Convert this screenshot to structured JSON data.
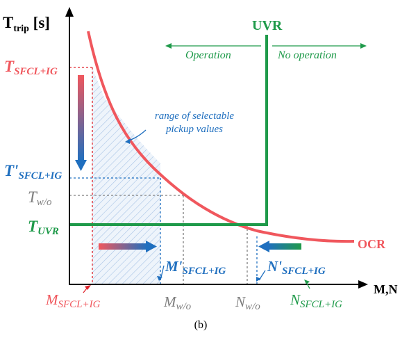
{
  "axes": {
    "y_label_main": "T",
    "y_label_sub": "trip",
    "y_label_unit": " [s]",
    "x_label": "M,N"
  },
  "labels": {
    "t_sfcl_main": "T",
    "t_sfcl_sub": "SFCL+IG",
    "t_prime_main": "T'",
    "t_prime_sub": "SFCL+IG",
    "t_wo_main": "T",
    "t_wo_sub": "w/o",
    "t_uvr_main": "T",
    "t_uvr_sub": "UVR",
    "uvr": "UVR",
    "operation": "Operation",
    "no_operation": "No operation",
    "ocr": "OCR",
    "range_line1": "range of selectable",
    "range_line2": "pickup values",
    "m_sfcl_main": "M",
    "m_sfcl_sub": "SFCL+IG",
    "m_prime_main": "M'",
    "m_prime_sub": "SFCL+IG",
    "m_wo_main": "M",
    "m_wo_sub": "w/o",
    "n_wo_main": "N",
    "n_wo_sub": "w/o",
    "n_prime_main": "N'",
    "n_prime_sub": "SFCL+IG",
    "n_sfcl_main": "N",
    "n_sfcl_sub": "SFCL+IG",
    "caption": "(b)"
  },
  "colors": {
    "ocr_red": "#f0575d",
    "uvr_green": "#1f9a4a",
    "blue": "#1f6fbf",
    "gray": "#7f7f7f",
    "black": "#000000"
  }
}
